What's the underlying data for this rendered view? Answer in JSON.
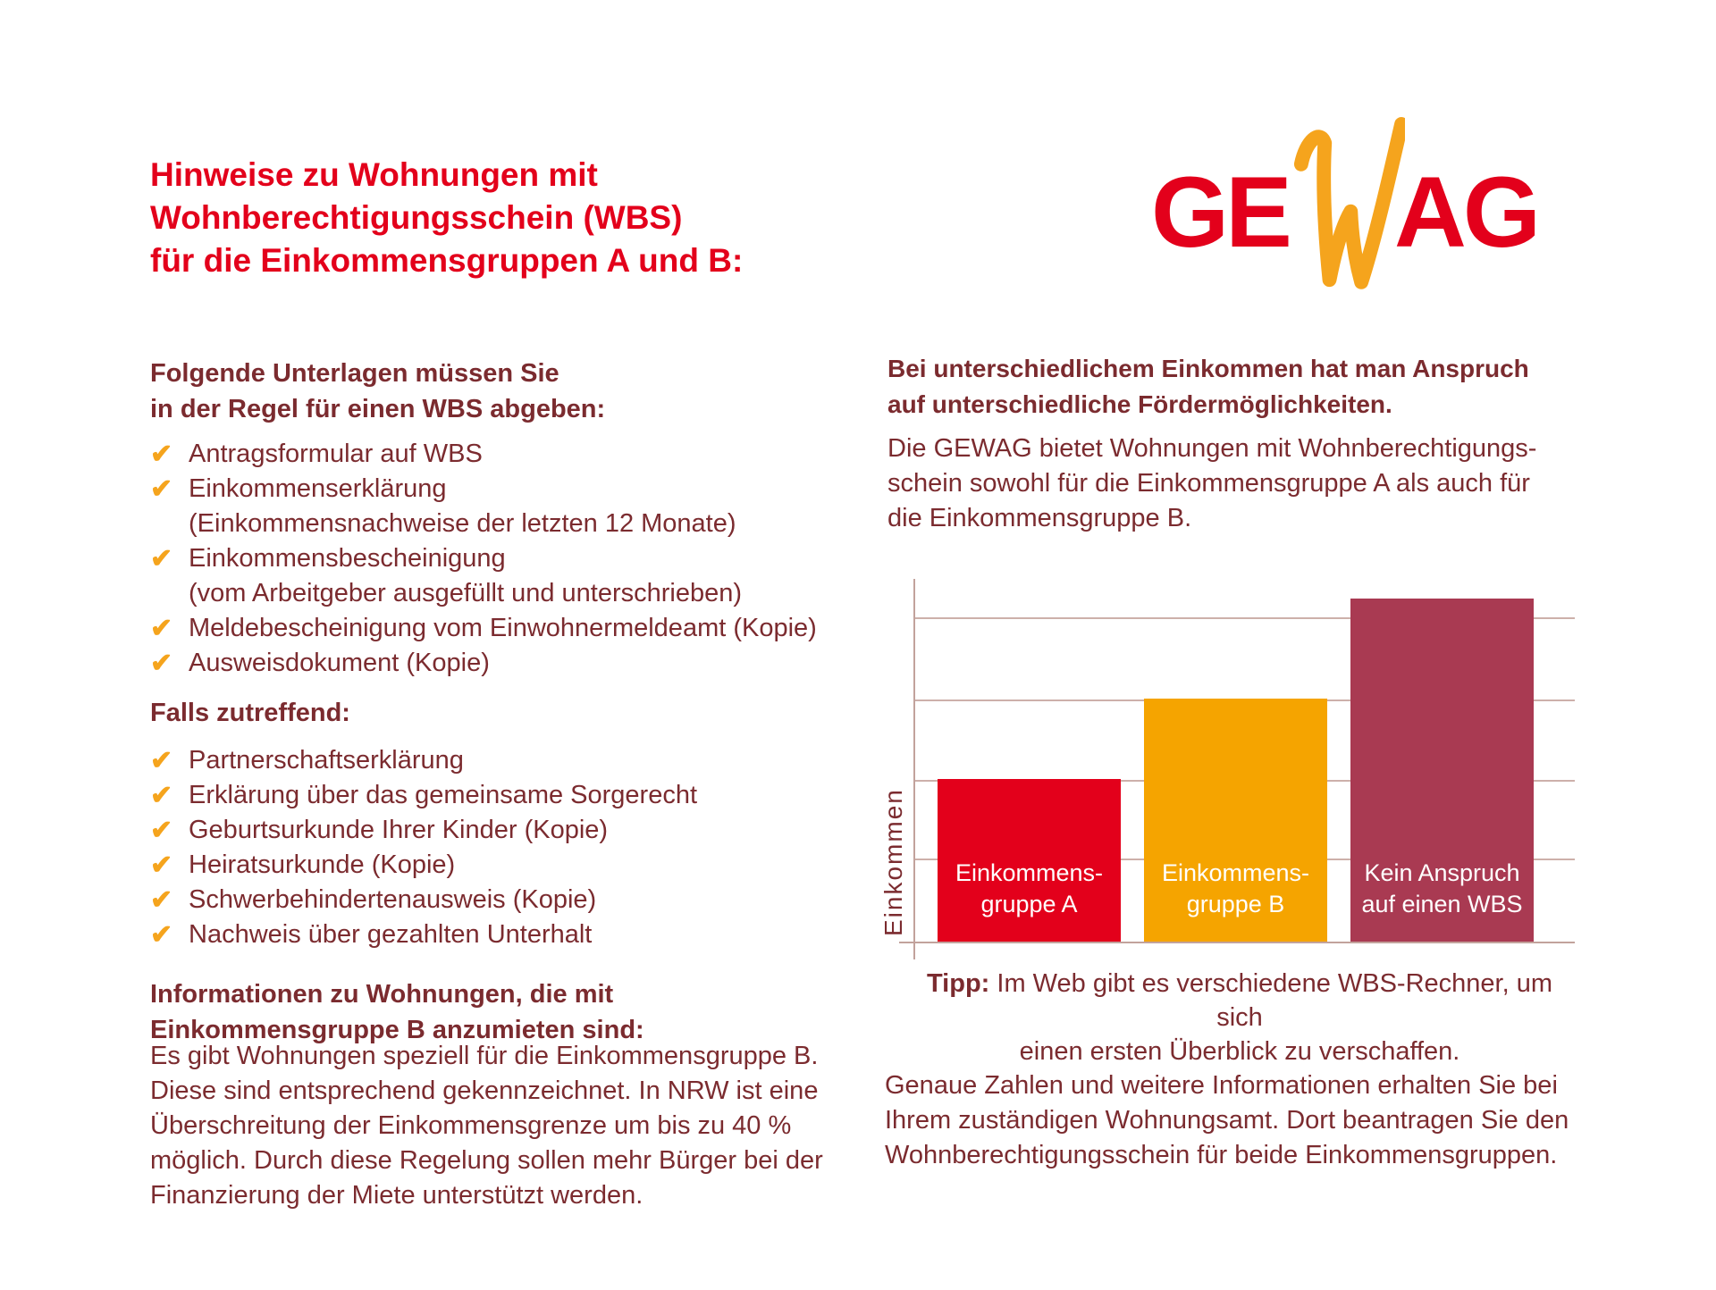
{
  "colors": {
    "brand_red": "#E3001B",
    "accent_orange": "#F5A41D",
    "bar_maroon": "#A93A52",
    "text_maroon": "#7B2B2F",
    "grid_line": "#CDB0AA",
    "bar_label_text": "#FFFFFF",
    "background": "#FFFFFF"
  },
  "icons": {
    "check_glyph": "✔"
  },
  "logo": {
    "part1": "GE",
    "part2": "W",
    "part3": "AG"
  },
  "left_column": {
    "title": "Hinweise zu Wohnungen mit\nWohnberechtigungsschein (WBS)\nfür die Einkommensgruppen A und B:",
    "documents_heading": "Folgende Unterlagen müssen Sie\nin der Regel für einen WBS abgeben:",
    "documents_checklist": [
      "Antragsformular auf WBS",
      "Einkommenserklärung\n(Einkommensnachweise der letzten 12 Monate)",
      "Einkommensbescheinigung\n(vom Arbeitgeber ausgefüllt und unterschrieben)",
      "Meldebescheinigung vom Einwohnermeldeamt (Kopie)",
      "Ausweisdokument (Kopie)"
    ],
    "conditional_heading": "Falls zutreffend:",
    "conditional_checklist": [
      "Partnerschaftserklärung",
      "Erklärung über das gemeinsame Sorgerecht",
      "Geburtsurkunde Ihrer Kinder (Kopie)",
      "Heiratsurkunde (Kopie)",
      "Schwerbehindertenausweis (Kopie)",
      "Nachweis über gezahlten Unterhalt"
    ],
    "info_heading": "Informationen zu Wohnungen, die mit\nEinkommensgruppe B anzumieten sind:",
    "info_paragraph": "Es gibt Wohnungen speziell für die Einkommensgruppe B.\nDiese sind entsprechend gekennzeichnet. In NRW ist eine\nÜberschreitung der Einkommensgrenze um bis zu 40 %\nmöglich. Durch diese Regelung sollen mehr Bürger bei der\nFinanzierung der Miete unterstützt werden."
  },
  "right_column": {
    "income_heading": "Bei unterschiedlichem Einkommen hat man Anspruch\nauf unterschiedliche Fördermöglichkeiten.",
    "income_paragraph": "Die GEWAG bietet Wohnungen mit Wohnberechtigungs-\nschein sowohl für die Einkommensgruppe A als auch für\ndie Einkommensgruppe B.",
    "tip_label": "Tipp:",
    "tip_text": "Im Web gibt es verschiedene WBS-Rechner, um sich\neinen ersten Überblick zu verschaffen.",
    "closing_paragraph": "Genaue Zahlen und weitere Informationen erhalten Sie bei\nIhrem zuständigen Wohnungsamt. Dort beantragen Sie den\nWohnberechtigungsschein für beide Einkommensgruppen."
  },
  "chart_data": {
    "type": "bar",
    "title": "",
    "xlabel": "",
    "ylabel": "Einkommen",
    "categories": [
      "Einkommens-\ngruppe A",
      "Einkommens-\ngruppe B",
      "Kein Anspruch\nauf einen WBS"
    ],
    "values": [
      44.7,
      66.8,
      94.3
    ],
    "bar_colors": [
      "#E3001B",
      "#F5A400",
      "#A93A52"
    ],
    "ylim": [
      0,
      100
    ],
    "y_tick_labels": [],
    "gridlines_y": [
      22.6,
      44.2,
      66.3,
      89.0
    ],
    "grid": true,
    "legend": false,
    "value_labels_position": "inside-bottom"
  }
}
